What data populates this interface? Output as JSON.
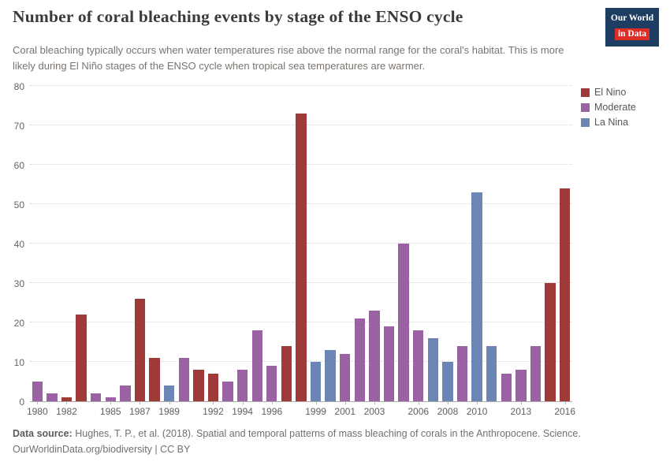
{
  "header": {
    "title": "Number of coral bleaching events by stage of the ENSO cycle",
    "subtitle": "Coral bleaching typically occurs when water temperatures rise above the normal range for the coral's habitat. This is more likely during El Niño stages of the ENSO cycle when tropical sea temperatures are warmer.",
    "logo": {
      "line1": "Our World",
      "line2": "in Data",
      "bg_color": "#1D3D63",
      "accent_color": "#DE2D26"
    }
  },
  "legend": {
    "position": "right",
    "items": [
      {
        "label": "El Nino",
        "color": "#9E3A37"
      },
      {
        "label": "Moderate",
        "color": "#9B62A3"
      },
      {
        "label": "La Nina",
        "color": "#6B85B5"
      }
    ]
  },
  "chart_data": {
    "type": "bar",
    "title": "Number of coral bleaching events by stage of the ENSO cycle",
    "xlabel": "",
    "ylabel": "",
    "ylim": [
      0,
      80
    ],
    "yticks": [
      0,
      10,
      20,
      30,
      40,
      50,
      60,
      70,
      80
    ],
    "xtick_labels": [
      1980,
      1982,
      1985,
      1987,
      1989,
      1992,
      1994,
      1996,
      1999,
      2001,
      2003,
      2006,
      2008,
      2010,
      2013,
      2016
    ],
    "grid": true,
    "legend_position": "right",
    "series_key": "ENSO stage",
    "bars": [
      {
        "year": 1980,
        "value": 5,
        "stage": "Moderate"
      },
      {
        "year": 1981,
        "value": 2,
        "stage": "Moderate"
      },
      {
        "year": 1982,
        "value": 1,
        "stage": "El Nino"
      },
      {
        "year": 1983,
        "value": 22,
        "stage": "El Nino"
      },
      {
        "year": 1984,
        "value": 2,
        "stage": "Moderate"
      },
      {
        "year": 1985,
        "value": 1,
        "stage": "Moderate"
      },
      {
        "year": 1986,
        "value": 4,
        "stage": "Moderate"
      },
      {
        "year": 1987,
        "value": 26,
        "stage": "El Nino"
      },
      {
        "year": 1988,
        "value": 11,
        "stage": "El Nino"
      },
      {
        "year": 1989,
        "value": 4,
        "stage": "La Nina"
      },
      {
        "year": 1990,
        "value": 11,
        "stage": "Moderate"
      },
      {
        "year": 1991,
        "value": 8,
        "stage": "El Nino"
      },
      {
        "year": 1992,
        "value": 7,
        "stage": "El Nino"
      },
      {
        "year": 1993,
        "value": 5,
        "stage": "Moderate"
      },
      {
        "year": 1994,
        "value": 8,
        "stage": "Moderate"
      },
      {
        "year": 1995,
        "value": 18,
        "stage": "Moderate"
      },
      {
        "year": 1996,
        "value": 9,
        "stage": "Moderate"
      },
      {
        "year": 1997,
        "value": 14,
        "stage": "El Nino"
      },
      {
        "year": 1998,
        "value": 73,
        "stage": "El Nino"
      },
      {
        "year": 1999,
        "value": 10,
        "stage": "La Nina"
      },
      {
        "year": 2000,
        "value": 13,
        "stage": "La Nina"
      },
      {
        "year": 2001,
        "value": 12,
        "stage": "Moderate"
      },
      {
        "year": 2002,
        "value": 21,
        "stage": "Moderate"
      },
      {
        "year": 2003,
        "value": 23,
        "stage": "Moderate"
      },
      {
        "year": 2004,
        "value": 19,
        "stage": "Moderate"
      },
      {
        "year": 2005,
        "value": 40,
        "stage": "Moderate"
      },
      {
        "year": 2006,
        "value": 18,
        "stage": "Moderate"
      },
      {
        "year": 2007,
        "value": 16,
        "stage": "La Nina"
      },
      {
        "year": 2008,
        "value": 10,
        "stage": "La Nina"
      },
      {
        "year": 2009,
        "value": 14,
        "stage": "Moderate"
      },
      {
        "year": 2010,
        "value": 53,
        "stage": "La Nina"
      },
      {
        "year": 2011,
        "value": 14,
        "stage": "La Nina"
      },
      {
        "year": 2012,
        "value": 7,
        "stage": "Moderate"
      },
      {
        "year": 2013,
        "value": 8,
        "stage": "Moderate"
      },
      {
        "year": 2014,
        "value": 14,
        "stage": "Moderate"
      },
      {
        "year": 2015,
        "value": 30,
        "stage": "El Nino"
      },
      {
        "year": 2016,
        "value": 54,
        "stage": "El Nino"
      }
    ]
  },
  "footer": {
    "source_label": "Data source:",
    "source_text": "Hughes, T. P., et al. (2018). Spatial and temporal patterns of mass bleaching of corals in the Anthropocene. Science.",
    "credit": "OurWorldinData.org/biodiversity | CC BY"
  }
}
